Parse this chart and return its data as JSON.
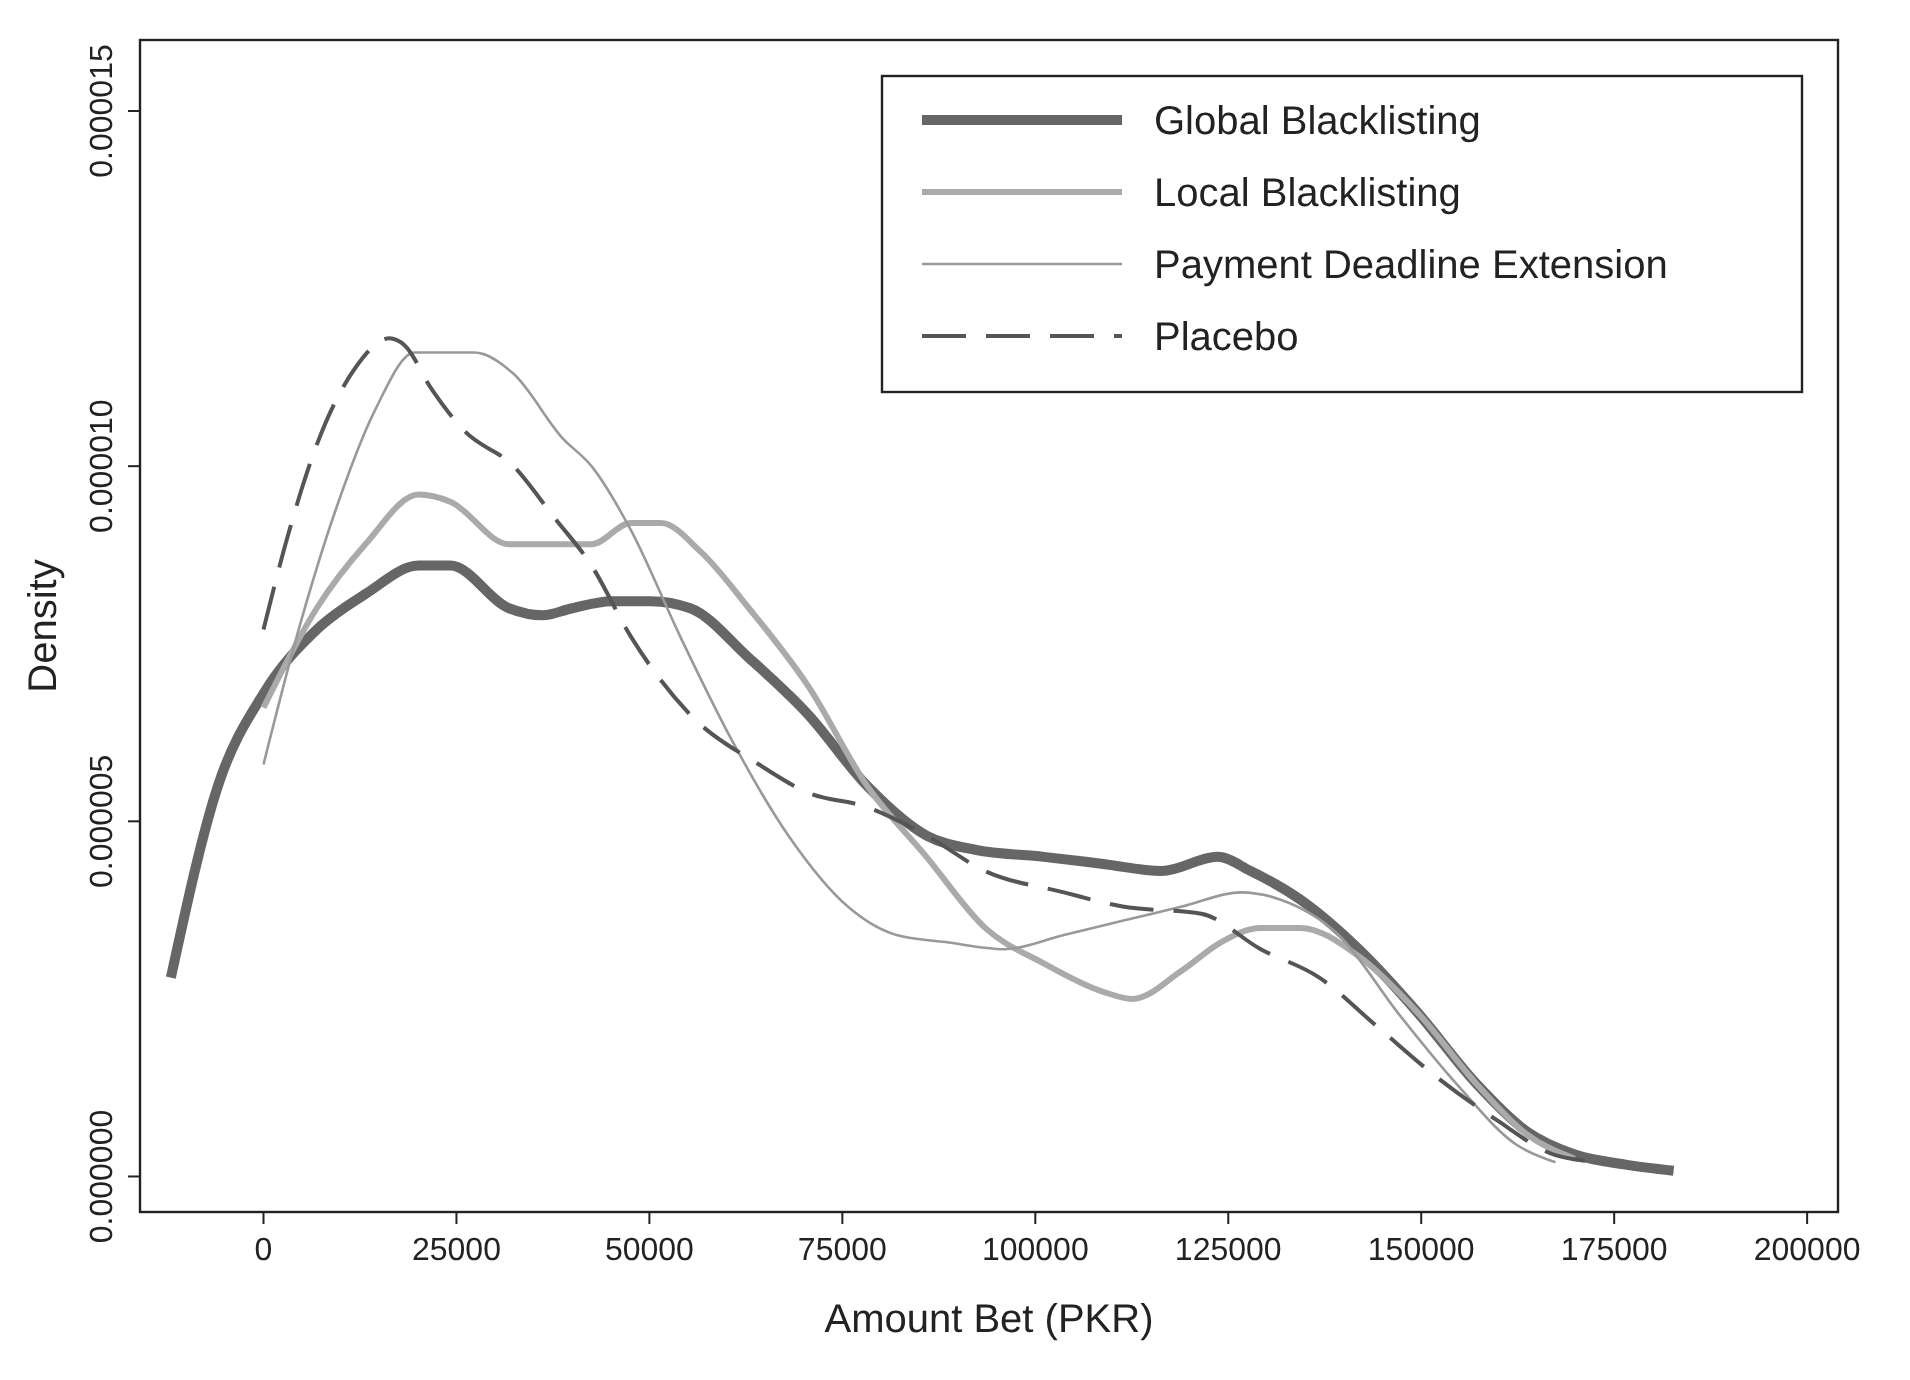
{
  "chart_data": {
    "type": "line",
    "xlabel": "Amount Bet (PKR)",
    "ylabel": "Density",
    "xlim": [
      -16000,
      204000
    ],
    "xticks": [
      0,
      25000,
      50000,
      75000,
      100000,
      125000,
      150000,
      175000,
      200000
    ],
    "ylim": [
      -5e-07,
      1.6e-05
    ],
    "yticks": [
      {
        "value": 0,
        "label": "0.000000"
      },
      {
        "value": 5e-06,
        "label": "0.000005"
      },
      {
        "value": 1e-05,
        "label": "0.000010"
      },
      {
        "value": 1.5e-05,
        "label": "0.000015"
      }
    ],
    "grid": false,
    "legend": "top right",
    "marker": "none",
    "series": [
      {
        "name": "Global Blacklisting",
        "color": "#666666",
        "line_style": "solid",
        "x": [
          -12000,
          -5900,
          0,
          6900,
          13200,
          20100,
          24200,
          31800,
          36200,
          40000,
          45100,
          50200,
          55300,
          62900,
          70600,
          78200,
          85900,
          92200,
          101100,
          108800,
          116400,
          123600,
          127900,
          134300,
          141900,
          149600,
          157200,
          163600,
          169900,
          176300,
          182700
        ],
        "values": [
          2.8e-06,
          5.5e-06,
          6.8e-06,
          7.7e-06,
          8.2e-06,
          8.6e-06,
          8.6e-06,
          8e-06,
          7.9e-06,
          8e-06,
          8.1e-06,
          8.1e-06,
          8e-06,
          7.3e-06,
          6.5e-06,
          5.5e-06,
          4.8e-06,
          4.6e-06,
          4.5e-06,
          4.4e-06,
          4.3e-06,
          4.5e-06,
          4.3e-06,
          3.9e-06,
          3.2e-06,
          2.3e-06,
          1.3e-06,
          6.4e-07,
          3.1e-07,
          1.7e-07,
          8e-08
        ]
      },
      {
        "name": "Local Blacklisting",
        "color": "#aaaaaa",
        "line_style": "solid",
        "x": [
          0,
          6900,
          13200,
          20100,
          24200,
          31800,
          37500,
          42500,
          47600,
          51500,
          56600,
          62900,
          70600,
          78200,
          85900,
          93500,
          101100,
          108800,
          112600,
          119000,
          124100,
          129200,
          134300,
          141900,
          149600,
          157200,
          163600,
          169900
        ],
        "values": [
          6.6e-06,
          8e-06,
          8.9e-06,
          9.6e-06,
          9.5e-06,
          8.9e-06,
          8.9e-06,
          8.9e-06,
          9.2e-06,
          9.2e-06,
          8.8e-06,
          8e-06,
          6.9e-06,
          5.5e-06,
          4.5e-06,
          3.5e-06,
          3e-06,
          2.6e-06,
          2.5e-06,
          2.9e-06,
          3.3e-06,
          3.5e-06,
          3.5e-06,
          3.1e-06,
          2.3e-06,
          1.3e-06,
          6e-07,
          2.5e-07
        ]
      },
      {
        "name": "Payment Deadline Extension",
        "color": "#999999",
        "line_style": "solid",
        "x": [
          0,
          4300,
          9400,
          14500,
          19600,
          23400,
          27300,
          32400,
          38700,
          42500,
          47600,
          54000,
          60400,
          68000,
          75700,
          82000,
          88400,
          96000,
          103700,
          111300,
          119000,
          126600,
          131700,
          139300,
          147000,
          154600,
          162300,
          167400
        ],
        "values": [
          5.8e-06,
          7.6e-06,
          9.4e-06,
          1.08e-05,
          1.16e-05,
          1.16e-05,
          1.16e-05,
          1.13e-05,
          1.04e-05,
          1e-05,
          9.1e-06,
          7.6e-06,
          6.2e-06,
          4.8e-06,
          3.8e-06,
          3.4e-06,
          3.3e-06,
          3.2e-06,
          3.4e-06,
          3.6e-06,
          3.8e-06,
          4e-06,
          3.9e-06,
          3.4e-06,
          2.3e-06,
          1.3e-06,
          4.5e-07,
          2e-07
        ]
      },
      {
        "name": "Placebo",
        "color": "#555555",
        "line_style": "dashed",
        "x": [
          0,
          3100,
          6900,
          12000,
          16300,
          18300,
          21700,
          26000,
          32400,
          37500,
          42500,
          47600,
          55300,
          64200,
          70600,
          78200,
          85900,
          93500,
          103700,
          111300,
          121500,
          129200,
          136800,
          144400,
          152000,
          159700,
          167400,
          171200
        ],
        "values": [
          7.7e-06,
          9e-06,
          1.03e-05,
          1.14e-05,
          1.18e-05,
          1.17e-05,
          1.11e-05,
          1.05e-05,
          1e-05,
          9.3e-06,
          8.6e-06,
          7.6e-06,
          6.5e-06,
          5.8e-06,
          5.4e-06,
          5.2e-06,
          4.8e-06,
          4.3e-06,
          4e-06,
          3.8e-06,
          3.7e-06,
          3.2e-06,
          2.8e-06,
          2.1e-06,
          1.4e-06,
          8e-07,
          3e-07,
          2.2e-07
        ]
      }
    ]
  }
}
